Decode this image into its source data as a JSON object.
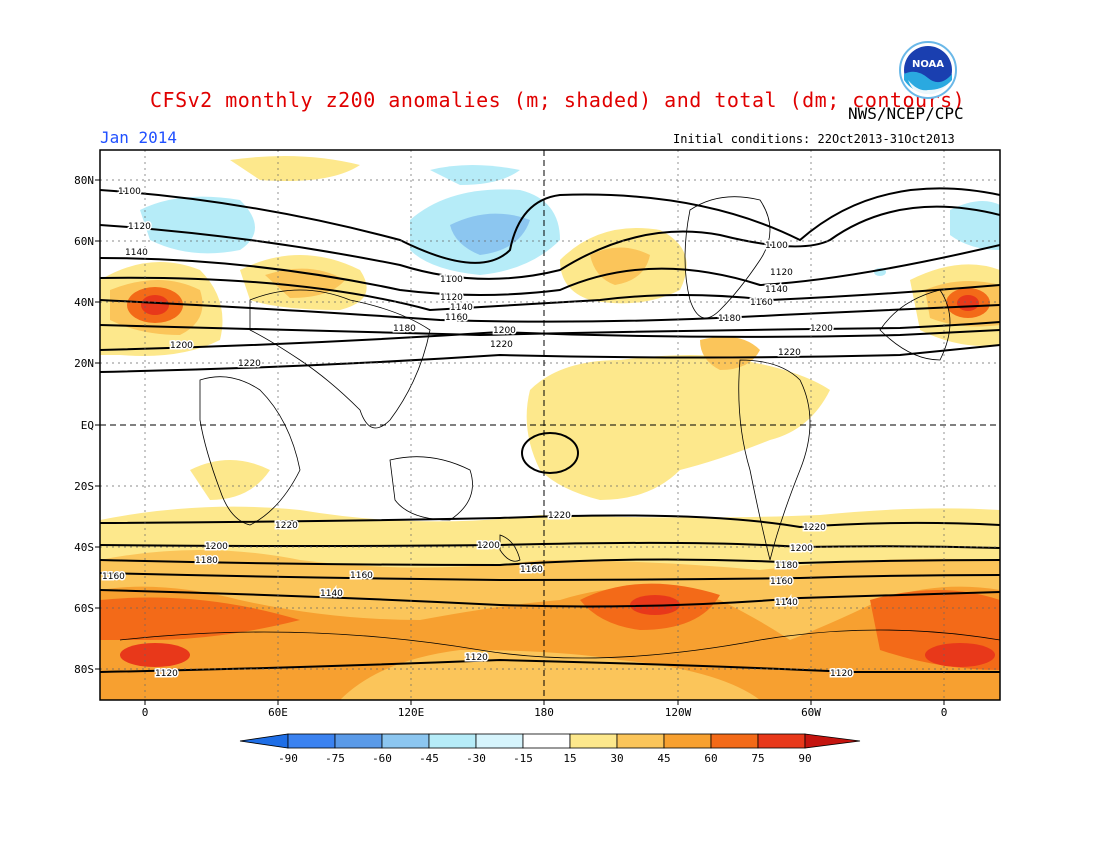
{
  "header": {
    "title": "CFSv2 monthly z200 anomalies (m; shaded) and total (dm; contours)",
    "agency": "NWS/NCEP/CPC",
    "month": "Jan 2014",
    "initial_conditions": "Initial conditions: 22Oct2013-31Oct2013",
    "logo_text": "NOAA"
  },
  "map": {
    "lat_labels": [
      "80N",
      "60N",
      "40N",
      "20N",
      "EQ",
      "20S",
      "40S",
      "60S",
      "80S"
    ],
    "lon_labels": [
      "0",
      "60E",
      "120E",
      "180",
      "120W",
      "60W",
      "0"
    ],
    "contour_labels": [
      "1100",
      "1120",
      "1140",
      "1160",
      "1180",
      "1200",
      "1220"
    ]
  },
  "colorbar": {
    "labels": [
      "-90",
      "-75",
      "-60",
      "-45",
      "-30",
      "-15",
      "15",
      "30",
      "45",
      "60",
      "75",
      "90"
    ],
    "colors": [
      "#1e6ee6",
      "#3b82f0",
      "#5a9ae8",
      "#8cc6f0",
      "#b6ecf8",
      "#ffffff",
      "#fde88c",
      "#fbc55a",
      "#f7a030",
      "#f36a18",
      "#e8381a",
      "#c4140f"
    ]
  },
  "colors": {
    "title": "#e00000",
    "month": "#2050ff"
  }
}
